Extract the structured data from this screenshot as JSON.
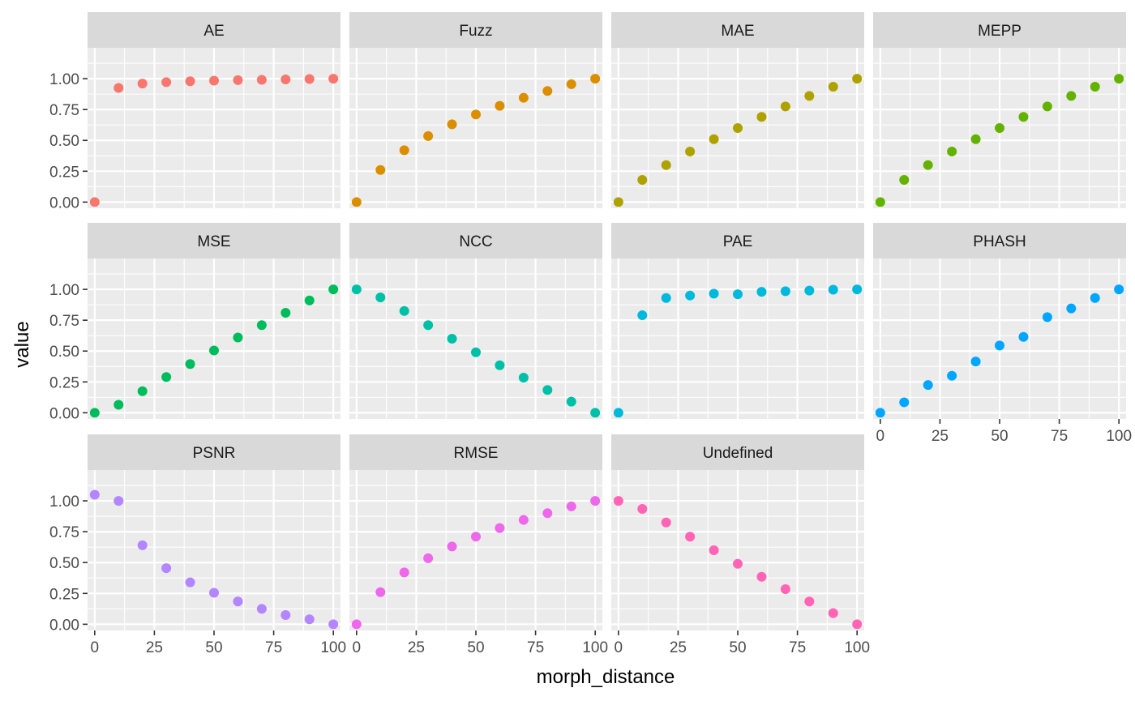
{
  "chart_data": {
    "type": "scatter",
    "facet_layout": "wrap",
    "facet_cols": 4,
    "xlabel": "morph_distance",
    "ylabel": "value",
    "xlim": [
      -3,
      103
    ],
    "ylim": [
      -0.05,
      1.25
    ],
    "x_ticks": [
      0,
      25,
      50,
      75,
      100
    ],
    "x_tick_labels": [
      "0",
      "25",
      "50",
      "75",
      "100"
    ],
    "y_ticks": [
      0,
      0.25,
      0.5,
      0.75,
      1.0
    ],
    "y_tick_labels": [
      "0.00",
      "0.25",
      "0.50",
      "0.75",
      "1.00"
    ],
    "grid": true,
    "legend": "none",
    "x": [
      0,
      10,
      20,
      30,
      40,
      50,
      60,
      70,
      80,
      90,
      100
    ],
    "facets": [
      {
        "name": "AE",
        "color": "#F8766D",
        "values": [
          0.0,
          0.925,
          0.96,
          0.972,
          0.979,
          0.984,
          0.988,
          0.991,
          0.994,
          0.997,
          1.0
        ]
      },
      {
        "name": "Fuzz",
        "color": "#DB8E00",
        "values": [
          0.0,
          0.26,
          0.42,
          0.535,
          0.63,
          0.71,
          0.78,
          0.845,
          0.9,
          0.955,
          1.0
        ]
      },
      {
        "name": "MAE",
        "color": "#AEA200",
        "values": [
          0.0,
          0.18,
          0.3,
          0.41,
          0.51,
          0.6,
          0.69,
          0.775,
          0.86,
          0.935,
          1.0
        ]
      },
      {
        "name": "MEPP",
        "color": "#64B200",
        "values": [
          0.0,
          0.18,
          0.3,
          0.41,
          0.51,
          0.6,
          0.69,
          0.775,
          0.86,
          0.935,
          1.0
        ]
      },
      {
        "name": "MSE",
        "color": "#00BD5C",
        "values": [
          0.0,
          0.065,
          0.175,
          0.29,
          0.395,
          0.505,
          0.61,
          0.71,
          0.81,
          0.91,
          1.0
        ]
      },
      {
        "name": "NCC",
        "color": "#00C1A7",
        "values": [
          1.0,
          0.935,
          0.825,
          0.71,
          0.6,
          0.49,
          0.385,
          0.285,
          0.185,
          0.09,
          0.0
        ]
      },
      {
        "name": "PAE",
        "color": "#00BADE",
        "values": [
          0.0,
          0.79,
          0.93,
          0.95,
          0.965,
          0.96,
          0.98,
          0.985,
          0.99,
          0.997,
          1.0
        ]
      },
      {
        "name": "PHASH",
        "color": "#00A6FF",
        "values": [
          0.0,
          0.085,
          0.225,
          0.3,
          0.415,
          0.545,
          0.615,
          0.775,
          0.845,
          0.93,
          1.0
        ]
      },
      {
        "name": "PSNR",
        "color": "#B385FF",
        "values": [
          1.05,
          1.0,
          0.64,
          0.455,
          0.34,
          0.255,
          0.185,
          0.125,
          0.075,
          0.04,
          0.0
        ]
      },
      {
        "name": "RMSE",
        "color": "#EF67EB",
        "values": [
          0.0,
          0.26,
          0.42,
          0.535,
          0.63,
          0.71,
          0.78,
          0.845,
          0.9,
          0.955,
          1.0
        ]
      },
      {
        "name": "Undefined",
        "color": "#FF63B6",
        "values": [
          1.0,
          0.935,
          0.825,
          0.71,
          0.6,
          0.49,
          0.385,
          0.285,
          0.185,
          0.09,
          0.0
        ]
      }
    ]
  }
}
